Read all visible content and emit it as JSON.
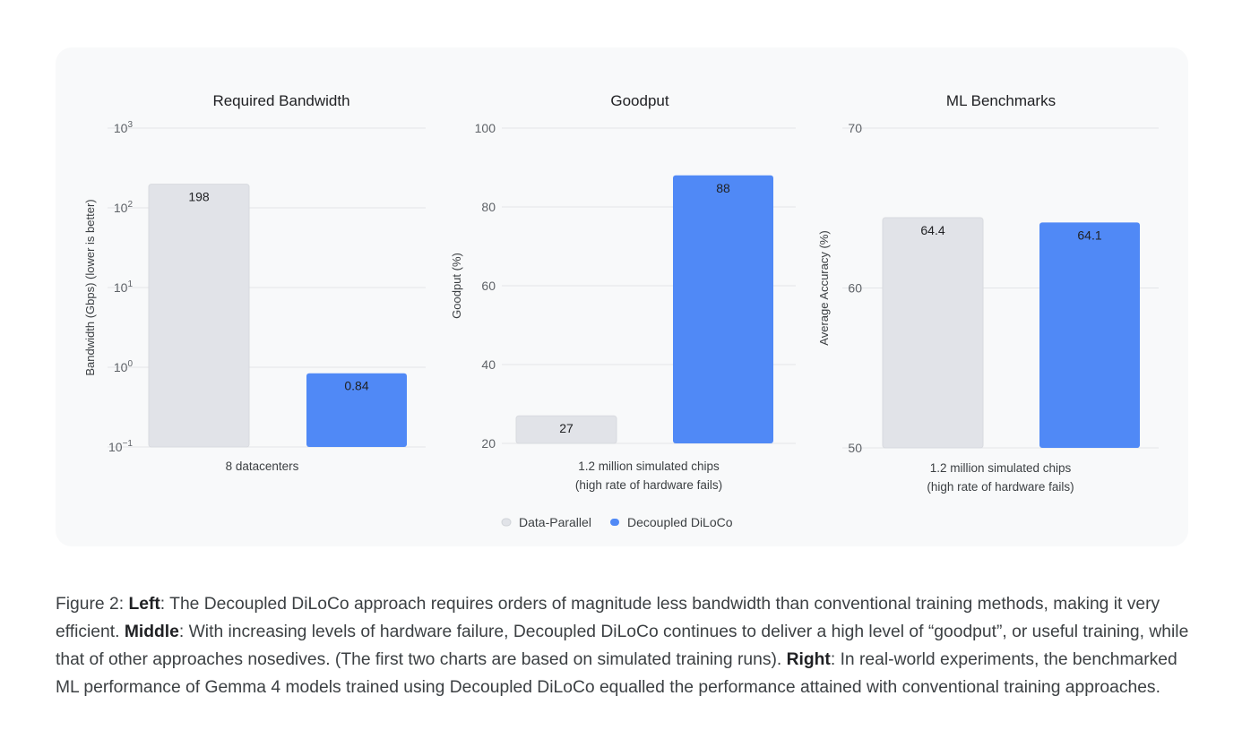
{
  "chart_data": [
    {
      "type": "bar",
      "title": "Required Bandwidth",
      "ylabel": "Bandwidth (Gbps) (lower is better)",
      "xlabel": "8 datacenters",
      "yscale": "log",
      "ylim": [
        0.1,
        1000
      ],
      "yticks": [
        {
          "v": 0.1,
          "base": "10",
          "exp": "−1"
        },
        {
          "v": 1,
          "base": "10",
          "exp": "0"
        },
        {
          "v": 10,
          "base": "10",
          "exp": "1"
        },
        {
          "v": 100,
          "base": "10",
          "exp": "2"
        },
        {
          "v": 1000,
          "base": "10",
          "exp": "3"
        }
      ],
      "series": [
        {
          "name": "Data-Parallel",
          "values": [
            198
          ],
          "labels": [
            "198"
          ]
        },
        {
          "name": "Decoupled DiLoCo",
          "values": [
            0.84
          ],
          "labels": [
            "0.84"
          ]
        }
      ],
      "grid": true
    },
    {
      "type": "bar",
      "title": "Goodput",
      "ylabel": "Goodput (%)",
      "xlabel": [
        "1.2 million simulated chips",
        "(high rate of hardware fails)"
      ],
      "ylim": [
        20,
        100
      ],
      "yticks": [
        {
          "v": 20,
          "base": "20"
        },
        {
          "v": 40,
          "base": "40"
        },
        {
          "v": 60,
          "base": "60"
        },
        {
          "v": 80,
          "base": "80"
        },
        {
          "v": 100,
          "base": "100"
        }
      ],
      "series": [
        {
          "name": "Data-Parallel",
          "values": [
            27
          ],
          "labels": [
            "27"
          ]
        },
        {
          "name": "Decoupled DiLoCo",
          "values": [
            88
          ],
          "labels": [
            "88"
          ]
        }
      ],
      "grid": true
    },
    {
      "type": "bar",
      "title": "ML Benchmarks",
      "ylabel": "Average Accuracy (%)",
      "xlabel": [
        "1.2 million simulated chips",
        "(high rate of hardware fails)"
      ],
      "ylim": [
        50,
        70
      ],
      "yticks": [
        {
          "v": 50,
          "base": "50"
        },
        {
          "v": 60,
          "base": "60"
        },
        {
          "v": 70,
          "base": "70"
        }
      ],
      "series": [
        {
          "name": "Data-Parallel",
          "values": [
            64.4
          ],
          "labels": [
            "64.4"
          ]
        },
        {
          "name": "Decoupled DiLoCo",
          "values": [
            64.1
          ],
          "labels": [
            "64.1"
          ]
        }
      ],
      "grid": true
    }
  ],
  "legend": {
    "position": "bottom-center",
    "items": [
      {
        "label": "Data-Parallel",
        "color": "#e1e3e8"
      },
      {
        "label": "Decoupled DiLoCo",
        "color": "#5089f6"
      }
    ]
  },
  "colors": {
    "series": [
      "#e1e3e8",
      "#5089f6"
    ],
    "grid": "#e3e5e8",
    "text": "#3c4043"
  },
  "caption": {
    "prefix": "Figure 2: ",
    "left_label": "Left",
    "left_text": ": The Decoupled DiLoCo approach requires orders of magnitude less bandwidth than conventional training methods, making it very efficient. ",
    "middle_label": "Middle",
    "middle_text": ": With increasing levels of hardware failure, Decoupled DiLoCo continues to deliver a high level of “goodput”, or useful training, while that of other approaches nosedives. (The first two charts are based on simulated training runs). ",
    "right_label": "Right",
    "right_text": ": In real-world experiments, the benchmarked ML performance of Gemma 4 models trained using Decoupled DiLoCo equalled the performance attained with conventional training approaches."
  }
}
